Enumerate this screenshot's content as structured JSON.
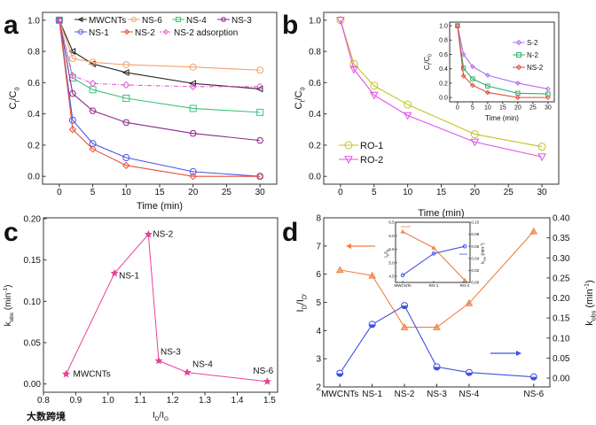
{
  "panel_letters": [
    "a",
    "b",
    "c",
    "d"
  ],
  "watermark": "大数跨境",
  "chart_data": [
    {
      "id": "a",
      "type": "line",
      "xlabel": "Time (min)",
      "ylabel_parts": [
        [
          "C",
          ""
        ],
        [
          "t",
          "sub"
        ],
        [
          "/C",
          ""
        ],
        [
          "0",
          "sub"
        ]
      ],
      "xlim": [
        -2.5,
        32.5
      ],
      "ylim": [
        -0.05,
        1.05
      ],
      "xticks": [
        0,
        5,
        10,
        15,
        20,
        25,
        30
      ],
      "yticks": [
        "0.0",
        "0.2",
        "0.4",
        "0.6",
        "0.8",
        "1.0"
      ],
      "x": [
        0,
        2,
        5,
        10,
        20,
        30
      ],
      "series": [
        {
          "name": "MWCNTs",
          "color": "#222222",
          "marker": "tri-left",
          "values": [
            1,
            0.8,
            0.72,
            0.665,
            0.595,
            0.56
          ]
        },
        {
          "name": "NS-6",
          "color": "#f4a26b",
          "marker": "circle",
          "values": [
            1,
            0.755,
            0.73,
            0.715,
            0.7,
            0.68
          ]
        },
        {
          "name": "NS-4",
          "color": "#3cc47a",
          "marker": "square",
          "values": [
            1,
            0.63,
            0.555,
            0.5,
            0.435,
            0.41
          ]
        },
        {
          "name": "NS-3",
          "color": "#8b2a8b",
          "marker": "hexagon",
          "values": [
            1,
            0.53,
            0.42,
            0.345,
            0.275,
            0.23
          ]
        },
        {
          "name": "NS-1",
          "color": "#4a56e0",
          "marker": "circle",
          "values": [
            1,
            0.36,
            0.21,
            0.12,
            0.03,
            0
          ]
        },
        {
          "name": "NS-2",
          "color": "#e8513a",
          "marker": "diamond",
          "values": [
            1,
            0.3,
            0.175,
            0.07,
            0,
            0
          ]
        },
        {
          "name": "NS-2 adsorption",
          "color": "#e85ad8",
          "marker": "diamond",
          "dash": true,
          "values": [
            1,
            0.645,
            0.595,
            0.585,
            0.575,
            0.575
          ]
        }
      ],
      "legend": "top-right"
    },
    {
      "id": "b",
      "type": "line",
      "xlabel": "Time (min)",
      "ylabel_parts": [
        [
          "C",
          ""
        ],
        [
          "t",
          "sub"
        ],
        [
          "/C",
          ""
        ],
        [
          "0",
          "sub"
        ]
      ],
      "xlim": [
        -2.5,
        32.5
      ],
      "ylim": [
        -0.05,
        1.05
      ],
      "xticks": [
        0,
        5,
        10,
        15,
        20,
        25,
        30
      ],
      "yticks": [
        "0.0",
        "0.2",
        "0.4",
        "0.6",
        "0.8",
        "1.0"
      ],
      "x": [
        0,
        2,
        5,
        10,
        20,
        30
      ],
      "series": [
        {
          "name": "RO-1",
          "color": "#c8c228",
          "marker": "circle",
          "values": [
            1,
            0.72,
            0.58,
            0.46,
            0.27,
            0.19
          ]
        },
        {
          "name": "RO-2",
          "color": "#e050e8",
          "marker": "tri-down",
          "values": [
            1,
            0.685,
            0.52,
            0.39,
            0.22,
            0.125
          ]
        }
      ],
      "legend": "bottom-left"
    },
    {
      "id": "b-inset",
      "type": "line",
      "xlabel": "Time (min)",
      "ylabel_parts": [
        [
          "C",
          ""
        ],
        [
          "t",
          "sub"
        ],
        [
          "/C",
          ""
        ],
        [
          "0",
          "sub"
        ]
      ],
      "xlim": [
        -2.6,
        32.1
      ],
      "ylim": [
        -0.06,
        1.05
      ],
      "xticks": [
        0,
        5,
        10,
        15,
        20,
        25,
        30
      ],
      "yticks": [
        "0.0",
        "0.2",
        "0.4",
        "0.6",
        "0.8",
        "1.0"
      ],
      "x": [
        0,
        2,
        5,
        10,
        20,
        30
      ],
      "series": [
        {
          "name": "S-2",
          "color": "#b070f0",
          "marker": "diamond",
          "values": [
            1,
            0.6,
            0.43,
            0.31,
            0.2,
            0.12
          ]
        },
        {
          "name": "N-2",
          "color": "#30b070",
          "marker": "square",
          "values": [
            1,
            0.41,
            0.26,
            0.16,
            0.06,
            0.05
          ]
        },
        {
          "name": "NS-2",
          "color": "#e84a3a",
          "marker": "diamond",
          "values": [
            1,
            0.3,
            0.17,
            0.07,
            0,
            0
          ]
        }
      ],
      "legend": "top-right"
    },
    {
      "id": "c",
      "type": "scatter",
      "xlabel_parts": [
        [
          "I",
          ""
        ],
        [
          "D",
          "sub"
        ],
        [
          "/I",
          ""
        ],
        [
          "G",
          "sub"
        ]
      ],
      "ylabel_parts": [
        [
          "k",
          ""
        ],
        [
          "obs",
          "sub"
        ],
        [
          " (min",
          ""
        ],
        [
          "-1",
          "sup"
        ],
        [
          ")",
          ""
        ]
      ],
      "xlim": [
        0.8,
        1.525
      ],
      "ylim": [
        -0.01,
        0.201
      ],
      "xticks": [
        "0.8",
        "0.9",
        "1.0",
        "1.1",
        "1.2",
        "1.3",
        "1.4",
        "1.5"
      ],
      "yticks": [
        "0.00",
        "0.05",
        "0.10",
        "0.15",
        "0.20"
      ],
      "color": "#e8409a",
      "points": [
        {
          "label": "MWCNTs",
          "x": 0.87,
          "y": 0.012
        },
        {
          "label": "NS-1",
          "x": 1.02,
          "y": 0.134
        },
        {
          "label": "NS-2",
          "x": 1.125,
          "y": 0.181
        },
        {
          "label": "NS-3",
          "x": 1.157,
          "y": 0.028
        },
        {
          "label": "NS-4",
          "x": 1.245,
          "y": 0.014
        },
        {
          "label": "NS-6",
          "x": 1.493,
          "y": 0.003
        }
      ]
    },
    {
      "id": "d",
      "type": "line",
      "categories": [
        "MWCNTs",
        "NS-1",
        "NS-2",
        "NS-3",
        "NS-4",
        "NS-6"
      ],
      "x": [
        0,
        1,
        2,
        3,
        4,
        6
      ],
      "xlim": [
        -0.5,
        6.5
      ],
      "ylabel_parts": [
        [
          "I",
          ""
        ],
        [
          "D",
          "sub"
        ],
        [
          "/I",
          ""
        ],
        [
          "D'",
          "sub"
        ]
      ],
      "ylabel2_parts": [
        [
          "k",
          ""
        ],
        [
          "obs",
          "sub"
        ],
        [
          " (min",
          ""
        ],
        [
          "-1",
          "sup"
        ],
        [
          ")",
          ""
        ]
      ],
      "ylim": [
        2,
        8
      ],
      "yticks": [
        "2",
        "3",
        "4",
        "5",
        "6",
        "7",
        "8"
      ],
      "ylim2": [
        -0.022,
        0.4
      ],
      "yticks2": [
        "0.00",
        "0.05",
        "0.10",
        "0.15",
        "0.20",
        "0.25",
        "0.30",
        "0.35",
        "0.40"
      ],
      "series": [
        {
          "name": "ID/ID'",
          "axis": "left",
          "color": "#f08040",
          "marker": "tri-up",
          "values": [
            6.15,
            5.95,
            4.12,
            4.12,
            4.97,
            7.52
          ]
        },
        {
          "name": "kobs",
          "axis": "right",
          "color": "#4050e0",
          "marker": "half-circle",
          "values": [
            0.012,
            0.134,
            0.181,
            0.028,
            0.014,
            0.003
          ]
        }
      ]
    },
    {
      "id": "d-inset",
      "type": "line",
      "categories": [
        "MWCNTs",
        "RO-1",
        "RO-2"
      ],
      "x": [
        0,
        1,
        2
      ],
      "xlim": [
        -0.23,
        2.17
      ],
      "ylabel_parts": [
        [
          "I",
          ""
        ],
        [
          "D",
          "sub"
        ],
        [
          "/I",
          ""
        ],
        [
          "D'",
          "sub"
        ]
      ],
      "ylabel2_parts": [
        [
          "k",
          ""
        ],
        [
          "obs",
          "sub"
        ],
        [
          " (min",
          ""
        ],
        [
          "-1",
          "sup"
        ],
        [
          ")",
          ""
        ]
      ],
      "ylim": [
        4.27,
        6.5
      ],
      "yticks": [
        "4.5",
        "5.0",
        "5.5",
        "6.0",
        "6.5"
      ],
      "ylim2": [
        0,
        0.1
      ],
      "yticks2": [
        "0.00",
        "0.02",
        "0.04",
        "0.06",
        "0.08",
        "0.10"
      ],
      "series": [
        {
          "name": "ID/ID'",
          "axis": "left",
          "color": "#f08040",
          "marker": "tri-up",
          "values": [
            6.15,
            5.55,
            4.35
          ]
        },
        {
          "name": "kobs",
          "axis": "right",
          "color": "#4050e0",
          "marker": "circle",
          "values": [
            0.012,
            0.048,
            0.06
          ]
        }
      ]
    }
  ]
}
